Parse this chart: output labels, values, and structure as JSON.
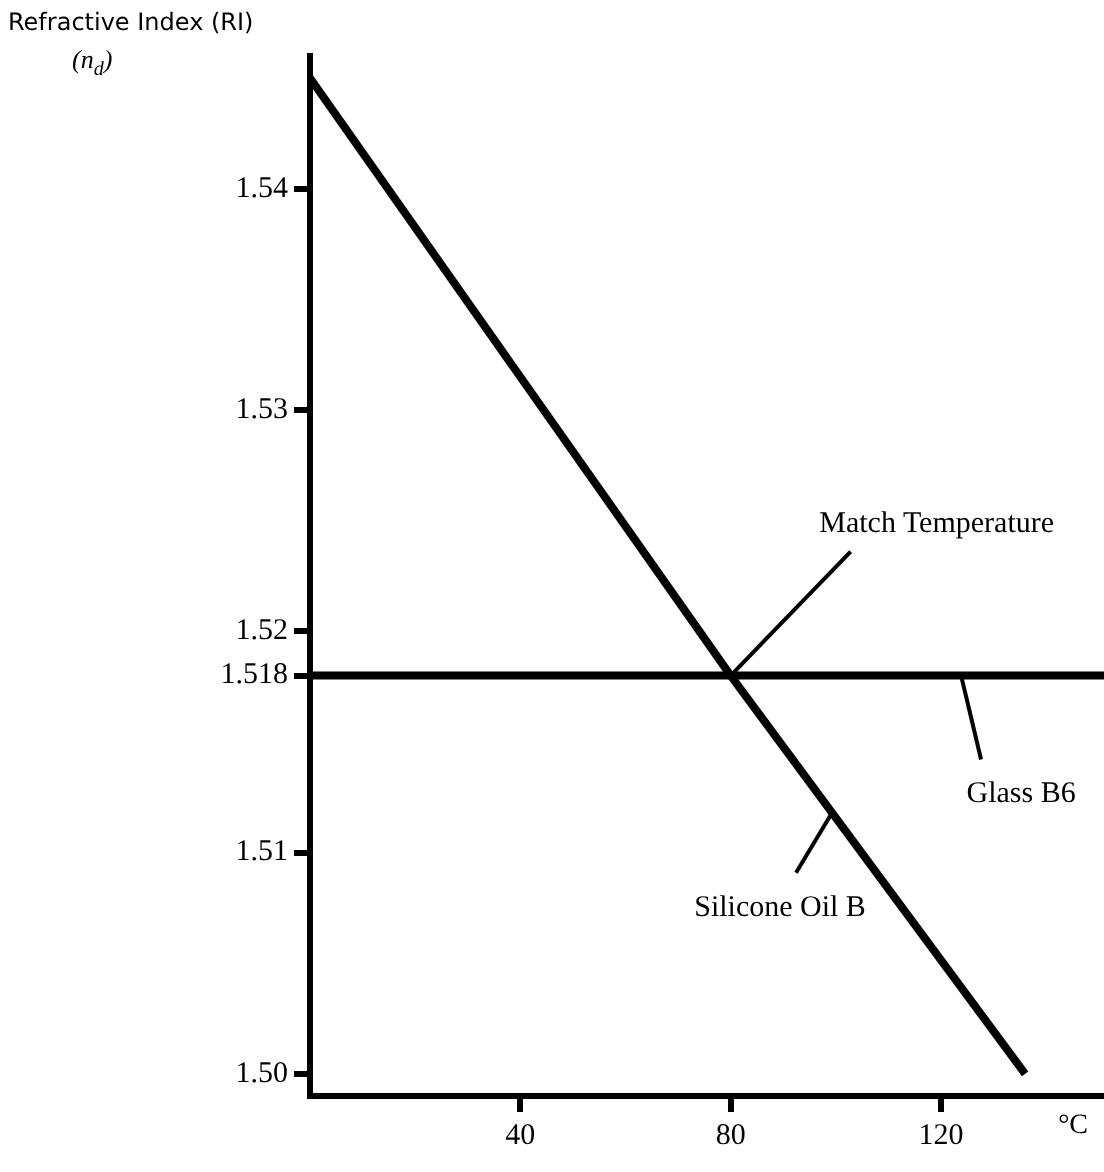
{
  "chart_data": {
    "type": "line",
    "ylabel": "Refractive Index (RI) (n$_{d}$)",
    "xlabel": "°C",
    "series": [
      {
        "name": "Silicone Oil B",
        "color": "#000000",
        "x": [
          0,
          80,
          136
        ],
        "values": [
          1.545,
          1.518,
          1.5
        ]
      },
      {
        "name": "Glass B6",
        "color": "#000000",
        "x": [
          0,
          151
        ],
        "values": [
          1.518,
          1.518
        ]
      }
    ],
    "annotations": [
      {
        "text": "Match Temperature",
        "x": 80,
        "y": 1.518
      }
    ],
    "xlim": [
      0,
      151
    ],
    "xticks": [
      40,
      80,
      120
    ],
    "ylim": [
      1.499,
      1.546
    ],
    "yticks": [
      {
        "value": 1.5,
        "label": "1.50"
      },
      1.51,
      1.518,
      1.52,
      1.53,
      1.54
    ],
    "grid": false,
    "marker": "none",
    "line_style": "solid"
  }
}
